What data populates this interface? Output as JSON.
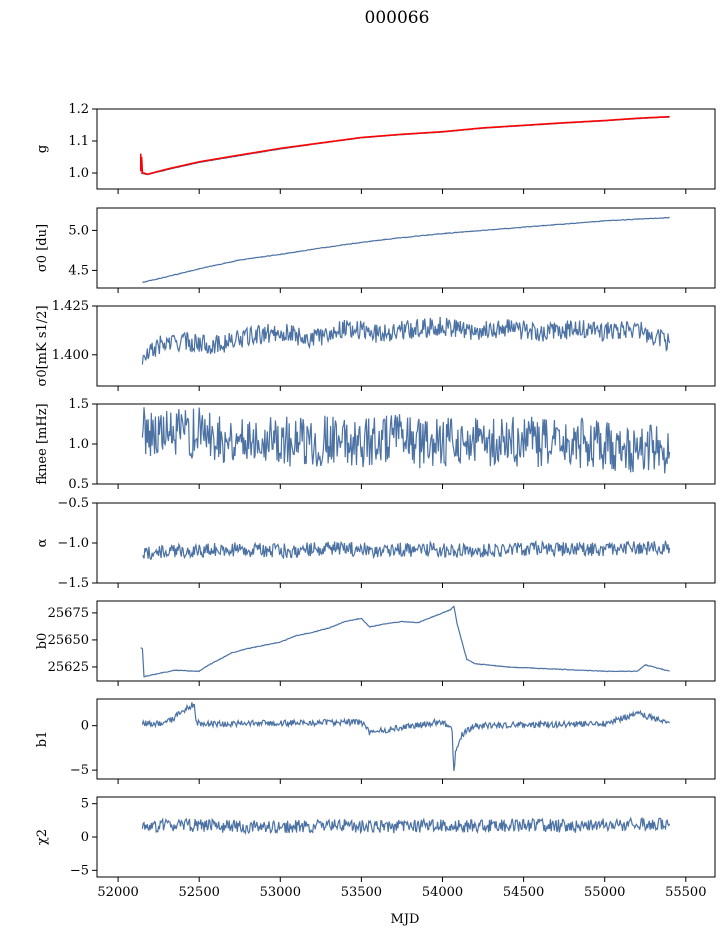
{
  "figure": {
    "title": "000066",
    "xlabel": "MJD"
  },
  "colors": {
    "series": "#4c72a4",
    "overlay": "#ff0000",
    "axis": "#000000"
  },
  "chart_data": [
    {
      "type": "line",
      "ylabel": "g",
      "ylim": [
        0.95,
        1.2
      ],
      "xlim": [
        51870,
        55680
      ],
      "yticks": [
        1.0,
        1.1,
        1.2
      ],
      "ytick_labels": [
        "1.0",
        "1.1",
        "1.2"
      ],
      "series": [
        {
          "color": "#4c72a4",
          "x": [
            52140,
            52180,
            52300,
            52500,
            52700,
            53000,
            53250,
            53500,
            53750,
            54000,
            54250,
            54500,
            54750,
            55000,
            55200,
            55400
          ],
          "y": [
            1.0,
            0.995,
            1.01,
            1.033,
            1.05,
            1.075,
            1.093,
            1.11,
            1.12,
            1.128,
            1.14,
            1.148,
            1.156,
            1.163,
            1.17,
            1.175
          ]
        },
        {
          "color": "#ff0000",
          "x": [
            52140,
            52140,
            52145,
            52150,
            52160,
            52180,
            52300,
            52500,
            52700,
            53000,
            53250,
            53500,
            53750,
            54000,
            54250,
            54500,
            54750,
            55000,
            55200,
            55400
          ],
          "y": [
            1.06,
            1.005,
            1.05,
            1.0,
            1.0,
            0.996,
            1.012,
            1.035,
            1.052,
            1.077,
            1.094,
            1.111,
            1.121,
            1.129,
            1.141,
            1.149,
            1.157,
            1.164,
            1.171,
            1.176
          ]
        }
      ]
    },
    {
      "type": "line",
      "ylabel": "σ0 [du]",
      "ylim": [
        4.28,
        5.28
      ],
      "yticks": [
        4.5,
        5.0
      ],
      "ytick_labels": [
        "4.5",
        "5.0"
      ],
      "series": [
        {
          "color": "#4c72a4",
          "x": [
            52150,
            52300,
            52500,
            52750,
            53000,
            53250,
            53500,
            53750,
            54000,
            54250,
            54500,
            54750,
            55000,
            55200,
            55400
          ],
          "y": [
            4.35,
            4.42,
            4.52,
            4.63,
            4.7,
            4.78,
            4.85,
            4.91,
            4.96,
            5.0,
            5.04,
            5.08,
            5.12,
            5.14,
            5.16
          ]
        }
      ]
    },
    {
      "type": "line",
      "ylabel": "σ0[mK s1/2]",
      "ylim": [
        1.384,
        1.425
      ],
      "yticks": [
        1.4,
        1.425
      ],
      "ytick_labels": [
        "1.400",
        "1.425"
      ],
      "series": [
        {
          "color": "#4c72a4",
          "x": [
            52150,
            52250,
            52400,
            52600,
            52800,
            53000,
            53200,
            53400,
            53600,
            53800,
            54000,
            54200,
            54400,
            54600,
            54800,
            55000,
            55200,
            55400
          ],
          "y": [
            1.397,
            1.405,
            1.407,
            1.405,
            1.409,
            1.412,
            1.408,
            1.414,
            1.411,
            1.413,
            1.415,
            1.412,
            1.414,
            1.411,
            1.413,
            1.412,
            1.413,
            1.406
          ]
        }
      ]
    },
    {
      "type": "line",
      "ylabel": "fknee [mHz]",
      "ylim": [
        0.5,
        1.5
      ],
      "yticks": [
        0.5,
        1.0,
        1.5
      ],
      "ytick_labels": [
        "0.5",
        "1.0",
        "1.5"
      ],
      "series": [
        {
          "color": "#4c72a4",
          "x": [
            52150,
            52300,
            52500,
            52700,
            52900,
            53100,
            53300,
            53500,
            53700,
            53900,
            54100,
            54300,
            54500,
            54700,
            54900,
            55100,
            55300,
            55400
          ],
          "y": [
            1.2,
            1.1,
            1.15,
            1.05,
            1.1,
            1.0,
            1.05,
            1.02,
            1.08,
            1.0,
            1.05,
            1.0,
            1.04,
            0.98,
            1.02,
            0.95,
            0.95,
            0.9
          ]
        }
      ]
    },
    {
      "type": "line",
      "ylabel": "α",
      "ylim": [
        -1.5,
        -0.5
      ],
      "yticks": [
        -1.5,
        -1.0,
        -0.5
      ],
      "ytick_labels": [
        "−1.5",
        "−1.0",
        "−0.5"
      ],
      "series": [
        {
          "color": "#4c72a4",
          "x": [
            52150,
            52400,
            52700,
            53000,
            53300,
            53600,
            53900,
            54200,
            54500,
            54800,
            55100,
            55400
          ],
          "y": [
            -1.13,
            -1.1,
            -1.08,
            -1.1,
            -1.07,
            -1.09,
            -1.08,
            -1.1,
            -1.07,
            -1.08,
            -1.07,
            -1.06
          ]
        }
      ]
    },
    {
      "type": "line",
      "ylabel": "b0",
      "ylim": [
        25612,
        25686
      ],
      "yticks": [
        25625,
        25650,
        25675
      ],
      "ytick_labels": [
        "25625",
        "25650",
        "25675"
      ],
      "series": [
        {
          "color": "#4c72a4",
          "x": [
            52140,
            52150,
            52160,
            52250,
            52350,
            52500,
            52550,
            52650,
            52700,
            52800,
            52900,
            53000,
            53100,
            53200,
            53300,
            53400,
            53500,
            53550,
            53650,
            53750,
            53850,
            54000,
            54050,
            54070,
            54090,
            54150,
            54200,
            54400,
            54700,
            55000,
            55200,
            55250,
            55300,
            55400
          ],
          "y": [
            25643,
            25642,
            25616,
            25619,
            25622,
            25621,
            25626,
            25634,
            25638,
            25642,
            25645,
            25648,
            25654,
            25657,
            25661,
            25667,
            25670,
            25662,
            25665,
            25667,
            25666,
            25675,
            25678,
            25681,
            25665,
            25632,
            25628,
            25625,
            25623,
            25621,
            25621,
            25627,
            25625,
            25621
          ]
        }
      ]
    },
    {
      "type": "line",
      "ylabel": "b1",
      "ylim": [
        -6,
        3
      ],
      "yticks": [
        -5,
        0
      ],
      "ytick_labels": [
        "−5",
        "0"
      ],
      "series": [
        {
          "color": "#4c72a4",
          "x": [
            52150,
            52300,
            52470,
            52480,
            52600,
            53000,
            53500,
            53550,
            54000,
            54060,
            54070,
            54080,
            54120,
            54200,
            54500,
            55000,
            55200,
            55400
          ],
          "y": [
            0.2,
            0.3,
            2.5,
            0.3,
            0.2,
            0.3,
            0.4,
            -0.8,
            0.5,
            -0.5,
            -5.2,
            -3.0,
            -1.0,
            0.0,
            0.1,
            0.2,
            1.4,
            0.3
          ]
        }
      ]
    },
    {
      "type": "line",
      "ylabel": "χ2",
      "ylim": [
        -6,
        6
      ],
      "yticks": [
        -5,
        0,
        5
      ],
      "ytick_labels": [
        "−5",
        "0",
        "5"
      ],
      "xticks": [
        52000,
        52500,
        53000,
        53500,
        54000,
        54500,
        55000,
        55500
      ],
      "xtick_labels": [
        "52000",
        "52500",
        "53000",
        "53500",
        "54000",
        "54500",
        "55000",
        "55500"
      ],
      "series": [
        {
          "color": "#4c72a4",
          "x": [
            52150,
            52400,
            52700,
            53000,
            53300,
            53600,
            53900,
            54200,
            54500,
            54800,
            55100,
            55400
          ],
          "y": [
            1.5,
            1.8,
            1.6,
            1.4,
            1.8,
            1.5,
            1.7,
            1.6,
            1.8,
            1.6,
            1.9,
            2.0
          ]
        }
      ]
    }
  ]
}
